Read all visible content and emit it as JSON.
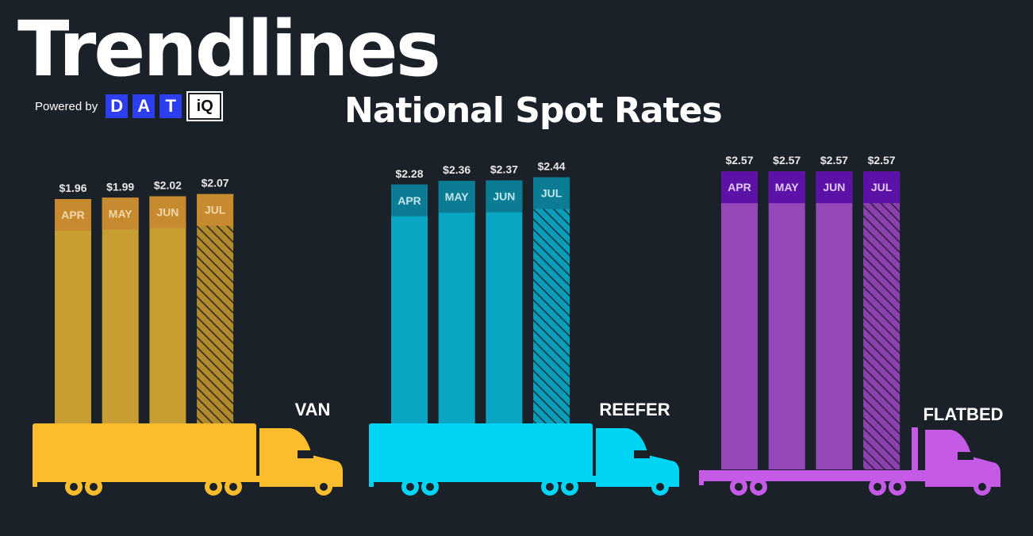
{
  "header": {
    "title": "Trendlines",
    "powered_by": "Powered by",
    "brand_letters": [
      "D",
      "A",
      "T"
    ],
    "brand_suffix": "iQ",
    "subtitle": "National Spot Rates"
  },
  "chart_data": {
    "type": "bar",
    "title": "National Spot Rates",
    "categories": [
      "APR",
      "MAY",
      "JUN",
      "JUL"
    ],
    "series": [
      {
        "name": "VAN",
        "values": [
          1.96,
          1.99,
          2.02,
          2.07
        ],
        "labels": [
          "$1.96",
          "$1.99",
          "$2.02",
          "$2.07"
        ],
        "bar_color": "#c89e32",
        "cap_color": "#c88a2e",
        "truck_color": "#fbbd2e",
        "label_color": "#f0d6a8",
        "trailer": "van"
      },
      {
        "name": "REEFER",
        "values": [
          2.28,
          2.36,
          2.37,
          2.44
        ],
        "labels": [
          "$2.28",
          "$2.36",
          "$2.37",
          "$2.44"
        ],
        "bar_color": "#0aa5c2",
        "cap_color": "#0c7c94",
        "truck_color": "#00d4f4",
        "label_color": "#bfe5ee",
        "trailer": "van"
      },
      {
        "name": "FLATBED",
        "values": [
          2.57,
          2.57,
          2.57,
          2.57
        ],
        "labels": [
          "$2.57",
          "$2.57",
          "$2.57",
          "$2.57"
        ],
        "bar_color": "#9548b8",
        "cap_color": "#5c12a6",
        "truck_color": "#c55ae6",
        "label_color": "#e2c8f4",
        "trailer": "flatbed"
      }
    ],
    "hatched_category": "JUL",
    "legend": "none",
    "grid": false
  }
}
